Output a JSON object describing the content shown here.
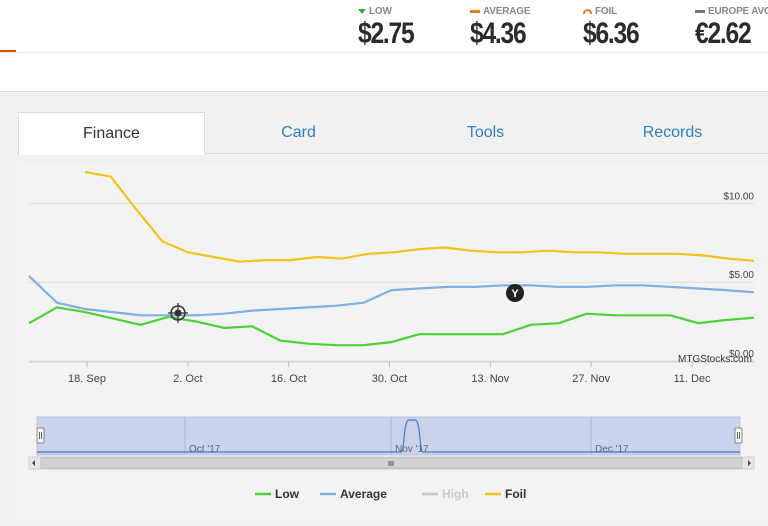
{
  "prices": [
    {
      "label": "LOW",
      "value": "$2.75",
      "indicator": "down-triangle-green"
    },
    {
      "label": "AVERAGE",
      "value": "$4.36",
      "indicator": "orange-bar"
    },
    {
      "label": "FOIL",
      "value": "$6.36",
      "indicator": "orange-arc"
    },
    {
      "label": "EUROPE AVG",
      "value": "€2.62",
      "indicator": "gray-bar"
    }
  ],
  "tabs": [
    {
      "label": "Finance",
      "active": true
    },
    {
      "label": "Card",
      "active": false
    },
    {
      "label": "Tools",
      "active": false
    },
    {
      "label": "Records",
      "active": false
    }
  ],
  "watermark": "MTGStocks.com",
  "chart_data": {
    "type": "line",
    "x_tick_labels": [
      "18. Sep",
      "2. Oct",
      "16. Oct",
      "30. Oct",
      "13. Nov",
      "27. Nov",
      "11. Dec"
    ],
    "y_tick_labels": [
      "$10.00",
      "$5.00",
      "$0.00"
    ],
    "ylim": [
      0,
      12.5
    ],
    "grid": true,
    "legend_position": "bottom-center",
    "navigator_labels": [
      "Oct '17",
      "Nov '17",
      "Dec '17"
    ],
    "series": [
      {
        "name": "Low",
        "color": "#4cd137",
        "values": [
          2.4,
          3.4,
          3.1,
          2.7,
          2.3,
          2.8,
          2.5,
          2.1,
          2.2,
          1.3,
          1.1,
          1.0,
          1.0,
          1.2,
          1.7,
          1.7,
          1.7,
          1.7,
          2.3,
          2.4,
          3.0,
          2.9,
          2.9,
          2.9,
          2.4,
          2.6,
          2.75
        ]
      },
      {
        "name": "Average",
        "color": "#7fb0e0",
        "values": [
          5.4,
          3.7,
          3.3,
          3.1,
          2.9,
          2.9,
          2.9,
          3.0,
          3.2,
          3.3,
          3.4,
          3.5,
          3.7,
          4.5,
          4.6,
          4.7,
          4.7,
          4.8,
          4.8,
          4.7,
          4.7,
          4.8,
          4.8,
          4.7,
          4.6,
          4.5,
          4.36
        ]
      },
      {
        "name": "High",
        "color": "#c8c8c8",
        "values": []
      },
      {
        "name": "Foil",
        "color": "#f0c419",
        "values": [
          12.0,
          11.7,
          9.6,
          7.6,
          6.9,
          6.6,
          6.3,
          6.4,
          6.4,
          6.6,
          6.5,
          6.8,
          6.9,
          7.1,
          7.2,
          7.0,
          6.9,
          6.9,
          7.0,
          6.9,
          6.9,
          6.8,
          6.8,
          6.8,
          6.7,
          6.5,
          6.36
        ]
      }
    ]
  }
}
